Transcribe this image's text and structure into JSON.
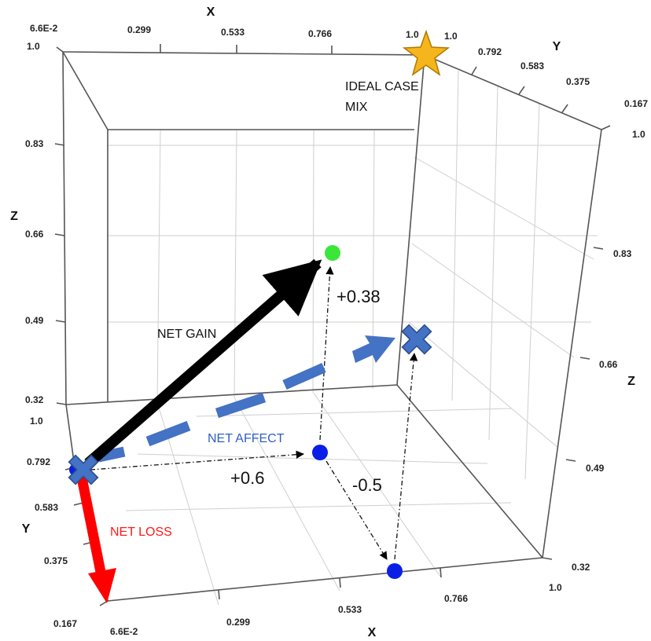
{
  "axes": {
    "x_title": "X",
    "y_title": "Y",
    "z_title": "Z",
    "x_top_ticks": [
      "6.6E-2",
      "0.299",
      "0.533",
      "0.766",
      "1.0"
    ],
    "x_bottom_ticks": [
      "6.6E-2",
      "0.299",
      "0.533",
      "0.766",
      "1.0"
    ],
    "y_right_ticks": [
      "1.0",
      "0.792",
      "0.583",
      "0.375",
      "0.167"
    ],
    "y_left_ticks": [
      "1.0",
      "0.792",
      "0.583",
      "0.375",
      "0.167"
    ],
    "z_left_ticks": [
      "1.0",
      "0.83",
      "0.66",
      "0.49",
      "0.32"
    ],
    "z_right_ticks": [
      "1.0",
      "0.83",
      "0.66",
      "0.49",
      "0.32"
    ]
  },
  "annotations": {
    "ideal_line1": "IDEAL CASE",
    "ideal_line2": "MIX",
    "net_gain": "NET GAIN",
    "net_affect": "NET AFFECT",
    "net_loss": "NET LOSS",
    "plus_038": "+0.38",
    "plus_06": "+0.6",
    "minus_05": "-0.5"
  },
  "colors": {
    "gain_arrow": "#000000",
    "loss_arrow": "#ff0000",
    "affect_arrow": "#4472c4",
    "point_blue": "#0a1fe6",
    "point_green": "#3be63b",
    "star": "#f5b51c",
    "net_affect_text": "#2f5fbf",
    "net_loss_text": "#ff1a1a"
  }
}
